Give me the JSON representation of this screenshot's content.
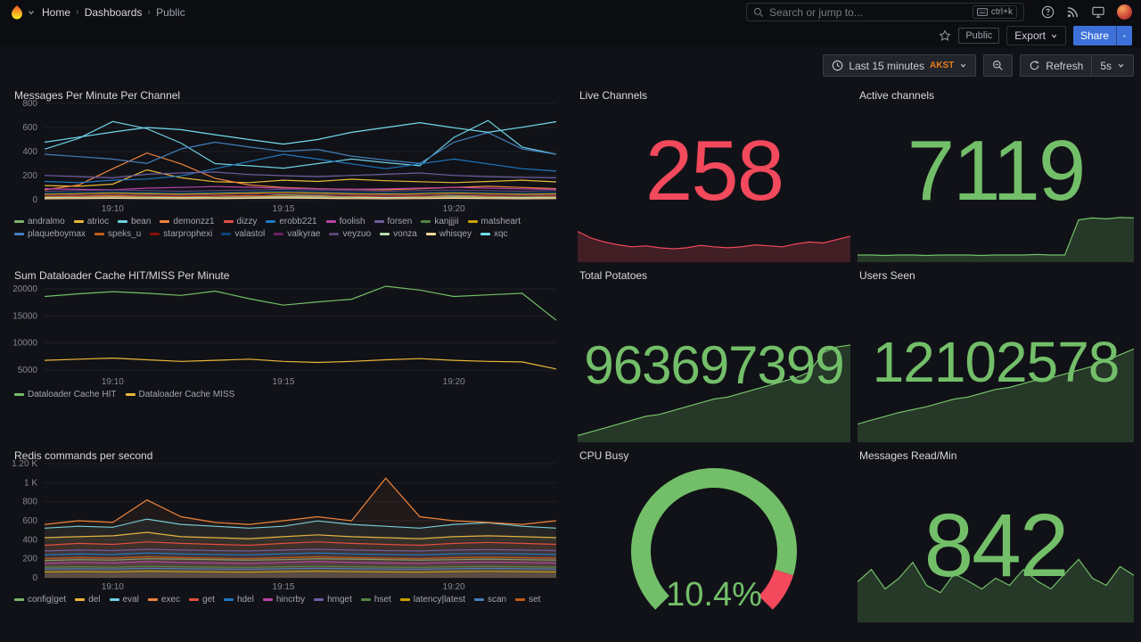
{
  "nav": {
    "breadcrumbs": [
      {
        "label": "Home"
      },
      {
        "label": "Dashboards"
      },
      {
        "label": "Public"
      }
    ],
    "separator": "›",
    "search": {
      "placeholder": "Search or jump to...",
      "shortcut": "ctrl+k"
    }
  },
  "subheader": {
    "tag_label": "Public",
    "export_label": "Export",
    "share_label": "Share"
  },
  "controls": {
    "time_label": "Last 15 minutes",
    "timezone": "AKST",
    "refresh_label": "Refresh",
    "interval": "5s"
  },
  "panels": {
    "messages": {
      "title": "Messages Per Minute Per Channel",
      "type": "timeseries",
      "y_min": 0,
      "y_max": 800,
      "y_ticks": [
        {
          "value": 0,
          "label": "0"
        },
        {
          "value": 200,
          "label": "200"
        },
        {
          "value": 400,
          "label": "400"
        },
        {
          "value": 600,
          "label": "600"
        },
        {
          "value": 800,
          "label": "800"
        }
      ],
      "x_ticks": [
        {
          "pos": 0.133,
          "label": "19:10"
        },
        {
          "pos": 0.467,
          "label": "19:15"
        },
        {
          "pos": 0.8,
          "label": "19:20"
        }
      ],
      "series": [
        {
          "name": "andralmo",
          "color": "#7EB26D",
          "values": [
            30,
            42,
            38,
            52,
            46,
            60,
            54,
            40,
            36,
            46,
            50,
            42,
            36,
            30,
            42,
            46
          ]
        },
        {
          "name": "atrioc",
          "color": "#EAB839",
          "values": [
            118,
            112,
            130,
            248,
            182,
            150,
            142,
            162,
            152,
            170,
            158,
            150,
            142,
            152,
            162,
            148
          ]
        },
        {
          "name": "bean",
          "color": "#6ED0E0",
          "values": [
            420,
            510,
            650,
            590,
            470,
            300,
            282,
            262,
            300,
            338,
            308,
            282,
            518,
            658,
            438,
            378
          ]
        },
        {
          "name": "demonzz1",
          "color": "#EF843C",
          "values": [
            82,
            122,
            258,
            388,
            298,
            178,
            122,
            102,
            92,
            86,
            82,
            92,
            102,
            112,
            102,
            92
          ]
        },
        {
          "name": "dizzy",
          "color": "#E24D42",
          "values": [
            22,
            26,
            30,
            28,
            26,
            30,
            34,
            30,
            28,
            26,
            30,
            28,
            26,
            30,
            32,
            30
          ]
        },
        {
          "name": "erobb221",
          "color": "#1F78C1",
          "values": [
            152,
            142,
            162,
            172,
            198,
            258,
            318,
            378,
            338,
            298,
            258,
            298,
            338,
            298,
            258,
            238
          ]
        },
        {
          "name": "foolish",
          "color": "#BA43A9",
          "values": [
            92,
            86,
            82,
            96,
            102,
            110,
            104,
            96,
            90,
            86,
            90,
            96,
            102,
            96,
            90,
            86
          ]
        },
        {
          "name": "forsen",
          "color": "#705DA0",
          "values": [
            202,
            192,
            182,
            212,
            222,
            230,
            210,
            200,
            192,
            202,
            212,
            222,
            202,
            192,
            186,
            182
          ]
        },
        {
          "name": "kanjjjii",
          "color": "#508642",
          "values": [
            16,
            18,
            20,
            22,
            20,
            18,
            16,
            20,
            22,
            20,
            18,
            16,
            18,
            20,
            22,
            20
          ]
        },
        {
          "name": "matsheart",
          "color": "#CCA300",
          "values": [
            46,
            50,
            56,
            50,
            46,
            50,
            56,
            60,
            56,
            50,
            46,
            50,
            56,
            50,
            46,
            50
          ]
        },
        {
          "name": "plaqueboymax",
          "color": "#447EBC",
          "values": [
            378,
            358,
            338,
            302,
            422,
            478,
            438,
            402,
            418,
            362,
            330,
            302,
            478,
            558,
            422,
            378
          ]
        },
        {
          "name": "speks_u",
          "color": "#C15C17",
          "values": [
            26,
            30,
            34,
            30,
            26,
            30,
            34,
            30,
            26,
            30,
            34,
            30,
            26,
            30,
            34,
            30
          ]
        },
        {
          "name": "starprophexi",
          "color": "#890F02",
          "values": [
            10,
            12,
            16,
            14,
            12,
            16,
            18,
            16,
            12,
            10,
            12,
            16,
            14,
            12,
            10,
            12
          ]
        },
        {
          "name": "valastol",
          "color": "#0A437C",
          "values": [
            56,
            60,
            66,
            60,
            56,
            60,
            66,
            70,
            66,
            60,
            56,
            60,
            66,
            60,
            56,
            60
          ]
        },
        {
          "name": "valkyrae",
          "color": "#6D1F62",
          "values": [
            36,
            40,
            46,
            40,
            36,
            40,
            46,
            50,
            46,
            40,
            36,
            40,
            46,
            40,
            36,
            40
          ]
        },
        {
          "name": "veyzuo",
          "color": "#584477",
          "values": [
            70,
            76,
            80,
            76,
            70,
            76,
            80,
            86,
            80,
            76,
            70,
            76,
            80,
            76,
            70,
            76
          ]
        },
        {
          "name": "vonza",
          "color": "#B7DBAB",
          "values": [
            18,
            20,
            22,
            20,
            18,
            20,
            22,
            24,
            22,
            20,
            18,
            20,
            22,
            20,
            18,
            20
          ]
        },
        {
          "name": "whisqey",
          "color": "#F4D598",
          "values": [
            8,
            10,
            12,
            10,
            8,
            10,
            12,
            14,
            12,
            10,
            8,
            10,
            12,
            10,
            8,
            10
          ]
        },
        {
          "name": "xqc",
          "color": "#70DBED",
          "values": [
            478,
            520,
            562,
            600,
            582,
            540,
            500,
            462,
            500,
            560,
            600,
            640,
            598,
            560,
            602,
            648
          ]
        }
      ]
    },
    "dataloader": {
      "title": "Sum Dataloader Cache HIT/MISS Per Minute",
      "type": "timeseries",
      "y_min": 4500,
      "y_max": 21000,
      "y_ticks": [
        {
          "value": 5000,
          "label": "5000"
        },
        {
          "value": 10000,
          "label": "10000"
        },
        {
          "value": 15000,
          "label": "15000"
        },
        {
          "value": 20000,
          "label": "20000"
        }
      ],
      "x_ticks": [
        {
          "pos": 0.133,
          "label": "19:10"
        },
        {
          "pos": 0.467,
          "label": "19:15"
        },
        {
          "pos": 0.8,
          "label": "19:20"
        }
      ],
      "series": [
        {
          "name": "Dataloader Cache HIT",
          "color": "#73BF69",
          "values": [
            18600,
            19100,
            19500,
            19200,
            18800,
            19600,
            18200,
            17000,
            17600,
            18100,
            20500,
            19800,
            18600,
            18900,
            19200,
            14200
          ]
        },
        {
          "name": "Dataloader Cache MISS",
          "color": "#EAB839",
          "values": [
            6800,
            7000,
            7200,
            6900,
            6600,
            6800,
            7000,
            6600,
            6400,
            6600,
            6900,
            7100,
            6800,
            6600,
            6500,
            5200
          ]
        }
      ]
    },
    "redis": {
      "title": "Redis commands per second",
      "type": "timeseries",
      "fill_opacity": 0.07,
      "y_min": 0,
      "y_max": 1200,
      "y_ticks": [
        {
          "value": 0,
          "label": "0"
        },
        {
          "value": 200,
          "label": "200"
        },
        {
          "value": 400,
          "label": "400"
        },
        {
          "value": 600,
          "label": "600"
        },
        {
          "value": 800,
          "label": "800"
        },
        {
          "value": 1000,
          "label": "1 K"
        },
        {
          "value": 1200,
          "label": "1.20 K"
        }
      ],
      "x_ticks": [
        {
          "pos": 0.133,
          "label": "19:10"
        },
        {
          "pos": 0.467,
          "label": "19:15"
        },
        {
          "pos": 0.8,
          "label": "19:20"
        }
      ],
      "series": [
        {
          "name": "config|get",
          "color": "#7EB26D",
          "values": [
            182,
            190,
            186,
            200,
            196,
            190,
            186,
            190,
            200,
            196,
            190,
            186,
            190,
            196,
            190,
            186
          ]
        },
        {
          "name": "del",
          "color": "#EAB839",
          "values": [
            422,
            432,
            442,
            478,
            432,
            422,
            412,
            432,
            452,
            432,
            422,
            412,
            432,
            442,
            432,
            422
          ]
        },
        {
          "name": "eval",
          "color": "#6ED0E0",
          "values": [
            522,
            542,
            532,
            618,
            562,
            542,
            522,
            542,
            598,
            562,
            542,
            522,
            562,
            578,
            542,
            522
          ]
        },
        {
          "name": "exec",
          "color": "#EF843C",
          "values": [
            562,
            600,
            582,
            818,
            642,
            582,
            562,
            600,
            642,
            600,
            1048,
            642,
            600,
            582,
            562,
            600
          ]
        },
        {
          "name": "get",
          "color": "#E24D42",
          "values": [
            342,
            362,
            352,
            378,
            362,
            352,
            342,
            362,
            378,
            362,
            352,
            342,
            362,
            372,
            362,
            352
          ]
        },
        {
          "name": "hdel",
          "color": "#1F78C1",
          "values": [
            242,
            252,
            246,
            262,
            252,
            246,
            242,
            252,
            262,
            252,
            246,
            242,
            252,
            256,
            252,
            246
          ]
        },
        {
          "name": "hincrby",
          "color": "#BA43A9",
          "values": [
            152,
            162,
            156,
            170,
            162,
            156,
            152,
            162,
            170,
            162,
            156,
            152,
            162,
            166,
            162,
            156
          ]
        },
        {
          "name": "hmget",
          "color": "#705DA0",
          "values": [
            282,
            292,
            286,
            300,
            292,
            286,
            282,
            292,
            300,
            292,
            286,
            282,
            292,
            296,
            292,
            286
          ]
        },
        {
          "name": "hset",
          "color": "#508642",
          "values": [
            112,
            116,
            112,
            120,
            116,
            112,
            110,
            116,
            120,
            116,
            112,
            110,
            116,
            118,
            116,
            112
          ]
        },
        {
          "name": "latency|latest",
          "color": "#CCA300",
          "values": [
            62,
            66,
            62,
            70,
            66,
            62,
            60,
            66,
            70,
            66,
            62,
            60,
            66,
            68,
            66,
            62
          ]
        },
        {
          "name": "scan",
          "color": "#447EBC",
          "values": [
            92,
            96,
            92,
            100,
            96,
            92,
            90,
            96,
            100,
            96,
            92,
            90,
            96,
            98,
            96,
            92
          ]
        },
        {
          "name": "set",
          "color": "#C15C17",
          "values": [
            202,
            212,
            206,
            220,
            212,
            206,
            202,
            212,
            220,
            212,
            206,
            202,
            212,
            216,
            212,
            206
          ]
        }
      ]
    },
    "live_channels": {
      "title": "Live Channels",
      "value": "258",
      "color": "#F2495C",
      "spark": {
        "color": "#F2495C",
        "values": [
          62,
          48,
          40,
          34,
          30,
          32,
          28,
          26,
          28,
          33,
          30,
          28,
          30,
          34,
          32,
          30,
          36,
          40,
          38,
          45,
          52
        ]
      }
    },
    "active_channels": {
      "title": "Active channels",
      "value": "7119",
      "color": "#73BF69",
      "spark": {
        "color": "#73BF69",
        "values": [
          13,
          13,
          12,
          13,
          13,
          12,
          13,
          13,
          13,
          12,
          13,
          13,
          13,
          14,
          13,
          13,
          86,
          90,
          88,
          91,
          90
        ]
      }
    },
    "total_potatoes": {
      "title": "Total Potatoes",
      "value": "963697399",
      "color": "#73BF69",
      "spark": {
        "color": "#73BF69",
        "values": [
          6,
          10,
          14,
          18,
          22,
          26,
          28,
          32,
          36,
          40,
          44,
          46,
          50,
          54,
          58,
          62,
          66,
          72,
          92,
          98,
          100
        ]
      }
    },
    "users_seen": {
      "title": "Users Seen",
      "value": "12102578",
      "color": "#73BF69",
      "spark": {
        "color": "#73BF69",
        "values": [
          18,
          22,
          26,
          30,
          33,
          36,
          40,
          44,
          46,
          50,
          54,
          56,
          60,
          64,
          66,
          70,
          74,
          78,
          84,
          90,
          96
        ]
      }
    },
    "cpu_busy": {
      "title": "CPU Busy",
      "value": "10.4%",
      "color": "#73BF69",
      "gauge": {
        "segments": [
          {
            "from": 225,
            "to": -17,
            "color": "#73BF69"
          },
          {
            "from": -17,
            "to": -45,
            "color": "#F2495C"
          }
        ]
      }
    },
    "messages_read": {
      "title": "Messages Read/Min",
      "value": "842",
      "color": "#73BF69",
      "spark": {
        "color": "#73BF69",
        "values": [
          55,
          72,
          45,
          60,
          82,
          50,
          40,
          66,
          56,
          45,
          60,
          50,
          72,
          56,
          45,
          66,
          86,
          60,
          50,
          76,
          64
        ]
      }
    }
  }
}
